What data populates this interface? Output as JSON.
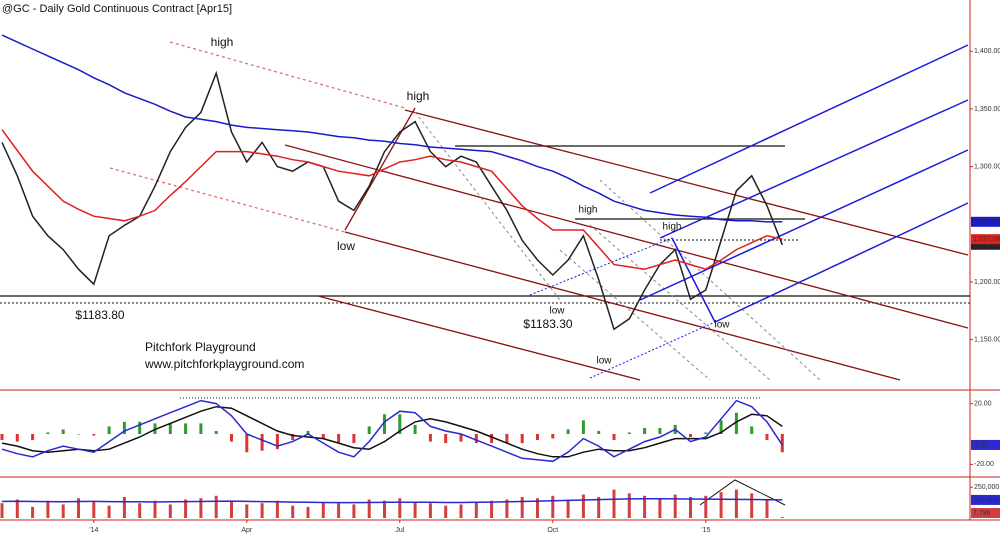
{
  "chart_data": [
    {
      "type": "line",
      "title": "@GC - Daily  Gold Continuous Contract [Apr15]",
      "annotations": [
        "high",
        "high",
        "low",
        "$1183.80",
        "low",
        "$1183.30",
        "low",
        "high",
        "high",
        "low",
        "Pitchfork Playground",
        "www.pitchforkplayground.com"
      ],
      "categories": [
        null,
        null,
        null,
        null,
        null,
        null,
        "'14",
        null,
        null,
        null,
        null,
        null,
        null,
        null,
        null,
        null,
        "Apr",
        null,
        null,
        null,
        null,
        null,
        null,
        null,
        null,
        null,
        "Jul",
        null,
        null,
        null,
        null,
        null,
        null,
        null,
        null,
        null,
        "Oct",
        null,
        null,
        null,
        null,
        null,
        null,
        null,
        null,
        null,
        "'15",
        null,
        null,
        null,
        null,
        null
      ],
      "ylim": [
        1108,
        1441
      ],
      "yticks": [
        {
          "value": 1150,
          "label": "1,150.00"
        },
        {
          "value": 1200,
          "label": "1,200.00"
        },
        {
          "value": 1300,
          "label": "1,300.00"
        },
        {
          "value": 1350,
          "label": "1,350.00"
        },
        {
          "value": 1400,
          "label": "1,400.00"
        }
      ],
      "series": [
        {
          "name": "Close",
          "color": "#222222",
          "values": [
            1321,
            1292,
            1257,
            1240,
            1228,
            1211,
            1198,
            1240,
            1249,
            1257,
            1283,
            1313,
            1334,
            1347,
            1381,
            1330,
            1304,
            1321,
            1300,
            1296,
            1304,
            1300,
            1270,
            1262,
            1283,
            1313,
            1330,
            1339,
            1313,
            1300,
            1309,
            1304,
            1283,
            1262,
            1236,
            1219,
            1206,
            1219,
            1240,
            1202,
            1159,
            1168,
            1193,
            1215,
            1228,
            1185,
            1193,
            1236,
            1279,
            1292,
            1266,
            1232.2
          ],
          "last_label": "1,232.20"
        },
        {
          "name": "Moving Average 50",
          "color": "#e02020",
          "values": [
            1332,
            1314,
            1296,
            1283,
            1270,
            1263,
            1257,
            1255,
            1253,
            1257,
            1262,
            1275,
            1287,
            1300,
            1313,
            1313,
            1313,
            1311,
            1309,
            1306,
            1304,
            1300,
            1296,
            1294,
            1292,
            1298,
            1304,
            1306,
            1309,
            1306,
            1304,
            1300,
            1296,
            1281,
            1266,
            1255,
            1245,
            1245,
            1245,
            1230,
            1215,
            1213,
            1211,
            1215,
            1219,
            1215,
            1211,
            1219,
            1228,
            1234,
            1240,
            1237.06
          ],
          "last_label": "1,237.06"
        },
        {
          "name": "Moving Average 200",
          "color": "#1a1acc",
          "values": [
            1414,
            1408,
            1402,
            1396,
            1390,
            1384,
            1377,
            1371,
            1364,
            1359,
            1354,
            1348,
            1343,
            1341,
            1339,
            1336,
            1334,
            1333,
            1332,
            1331,
            1330,
            1328,
            1326,
            1325,
            1323,
            1322,
            1320,
            1319,
            1317,
            1316,
            1315,
            1314,
            1313,
            1309,
            1305,
            1300,
            1296,
            1290,
            1283,
            1277,
            1270,
            1266,
            1262,
            1260,
            1258,
            1257,
            1256,
            1254,
            1253,
            1253,
            1252,
            1252.12
          ],
          "last_label": "1,252.12"
        }
      ]
    },
    {
      "type": "line",
      "ylim": [
        -27,
        27
      ],
      "yticks": [
        {
          "value": 20,
          "label": "20.00"
        },
        {
          "value": -20,
          "label": "-20.00"
        }
      ],
      "series": [
        {
          "name": "Histogram",
          "kind": "bar",
          "color": "#2e9b2e",
          "negative_color": "#dd3333",
          "values": [
            -4,
            -5,
            -4,
            1,
            3,
            0,
            -1,
            5,
            8,
            8,
            7,
            7,
            7,
            7,
            2,
            -5,
            -12,
            -11,
            -10,
            -4,
            2,
            -3,
            -6,
            -6,
            5,
            13,
            13,
            6,
            -5,
            -6,
            -5,
            -6,
            -6,
            -6,
            -6,
            -4,
            -3,
            3,
            9,
            2,
            -4,
            1,
            4,
            4,
            6,
            -2,
            1,
            9,
            14,
            5,
            -4,
            -12
          ]
        },
        {
          "name": "Signal",
          "color": "#111111",
          "values": [
            -6,
            -8,
            -11,
            -12,
            -11,
            -10,
            -11,
            -10,
            -6,
            -2,
            3,
            7,
            11,
            15,
            18,
            17,
            12,
            7,
            2,
            -1,
            -2,
            -3,
            -6,
            -9,
            -10,
            -5,
            2,
            8,
            10,
            8,
            5,
            2,
            -2,
            -6,
            -10,
            -13,
            -15,
            -15,
            -12,
            -10,
            -11,
            -11,
            -9,
            -6,
            -3,
            -3,
            -3,
            1,
            8,
            13,
            12,
            5
          ]
        },
        {
          "name": "MACD",
          "color": "#2a2ad0",
          "values": [
            -10,
            -13,
            -15,
            -11,
            -8,
            -10,
            -12,
            -5,
            2,
            6,
            10,
            14,
            18,
            22,
            20,
            12,
            0,
            -4,
            -8,
            -5,
            0,
            -6,
            -12,
            -15,
            -5,
            8,
            15,
            14,
            5,
            2,
            0,
            -4,
            -8,
            -12,
            -16,
            -17,
            -18,
            -12,
            -3,
            -8,
            -15,
            -10,
            -5,
            -2,
            3,
            -5,
            -2,
            10,
            22,
            18,
            8,
            -7.21
          ],
          "last_label": "-7.21"
        }
      ]
    },
    {
      "type": "bar",
      "ylim": [
        0,
        300000
      ],
      "yticks": [
        {
          "value": 250000,
          "label": "250,000"
        }
      ],
      "series": [
        {
          "name": "Volume",
          "color": "#d04040",
          "values": [
            120000,
            150000,
            90000,
            140000,
            110000,
            160000,
            130000,
            100000,
            170000,
            120000,
            140000,
            110000,
            150000,
            160000,
            180000,
            130000,
            110000,
            120000,
            140000,
            100000,
            90000,
            130000,
            120000,
            110000,
            150000,
            140000,
            160000,
            130000,
            120000,
            100000,
            110000,
            130000,
            140000,
            150000,
            170000,
            160000,
            180000,
            150000,
            190000,
            170000,
            230000,
            200000,
            180000,
            160000,
            190000,
            170000,
            180000,
            210000,
            230000,
            200000,
            150000,
            7796
          ],
          "last_label": "7,796"
        },
        {
          "name": "Volume Average",
          "kind": "line",
          "color": "#2a2ad0",
          "values": [
            135000,
            136000,
            134000,
            133000,
            132000,
            134000,
            135000,
            133000,
            132000,
            131000,
            130000,
            131000,
            133000,
            134000,
            136000,
            137000,
            135000,
            133000,
            131000,
            129000,
            127000,
            126000,
            125000,
            125000,
            126000,
            127000,
            128000,
            128000,
            127000,
            126000,
            126000,
            127000,
            129000,
            131000,
            134000,
            137000,
            140000,
            143000,
            146000,
            149000,
            152000,
            155000,
            156000,
            156000,
            155000,
            154000,
            153000,
            152000,
            151000,
            150000,
            148000,
            146466
          ],
          "last_label": "146,466"
        }
      ]
    }
  ]
}
